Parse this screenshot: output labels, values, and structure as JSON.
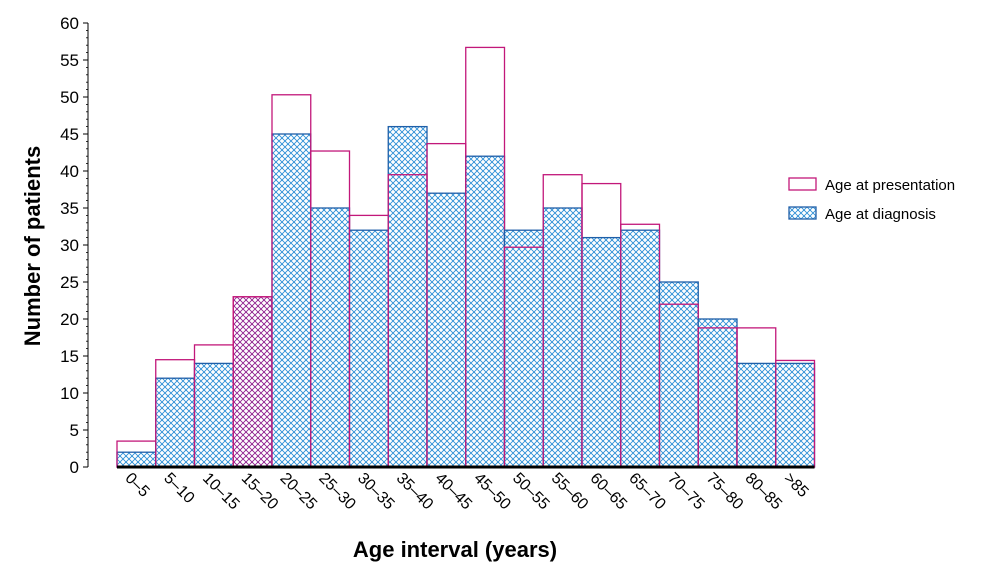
{
  "colors": {
    "presentation": "#c2187a",
    "diagnosis_border": "#1f5fa8",
    "diagnosis_hatch": "#2c8fd6",
    "overlap_hatch": "#8e1f8f",
    "axis": "#000000"
  },
  "chart_data": {
    "type": "bar",
    "title": "",
    "xlabel": "Age interval (years)",
    "ylabel": "Number of patients",
    "ylim": [
      0,
      60
    ],
    "yticks": [
      0,
      5,
      10,
      15,
      20,
      25,
      30,
      35,
      40,
      45,
      50,
      55,
      60
    ],
    "grid": false,
    "legend_position": "right",
    "categories": [
      "0–5",
      "5–10",
      "10–15",
      "15–20",
      "20–25",
      "25–30",
      "30–35",
      "35–40",
      "40–45",
      "45–50",
      "50–55",
      "55–60",
      "60–65",
      "65–70",
      "70–75",
      "75–80",
      "80–85",
      ">85"
    ],
    "series": [
      {
        "name": "Age at presentation",
        "style": "outline",
        "values": [
          3.5,
          14.5,
          16.5,
          23,
          50.3,
          42.7,
          34,
          39.5,
          43.7,
          56.7,
          29.7,
          39.5,
          38.3,
          32.8,
          22,
          18.8,
          18.8,
          14.4
        ]
      },
      {
        "name": "Age at diagnosis",
        "style": "crosshatch",
        "values": [
          2,
          12,
          14,
          23,
          45,
          35,
          32,
          46,
          37,
          42,
          32,
          35,
          31,
          32,
          25,
          20,
          14,
          14
        ]
      }
    ]
  }
}
